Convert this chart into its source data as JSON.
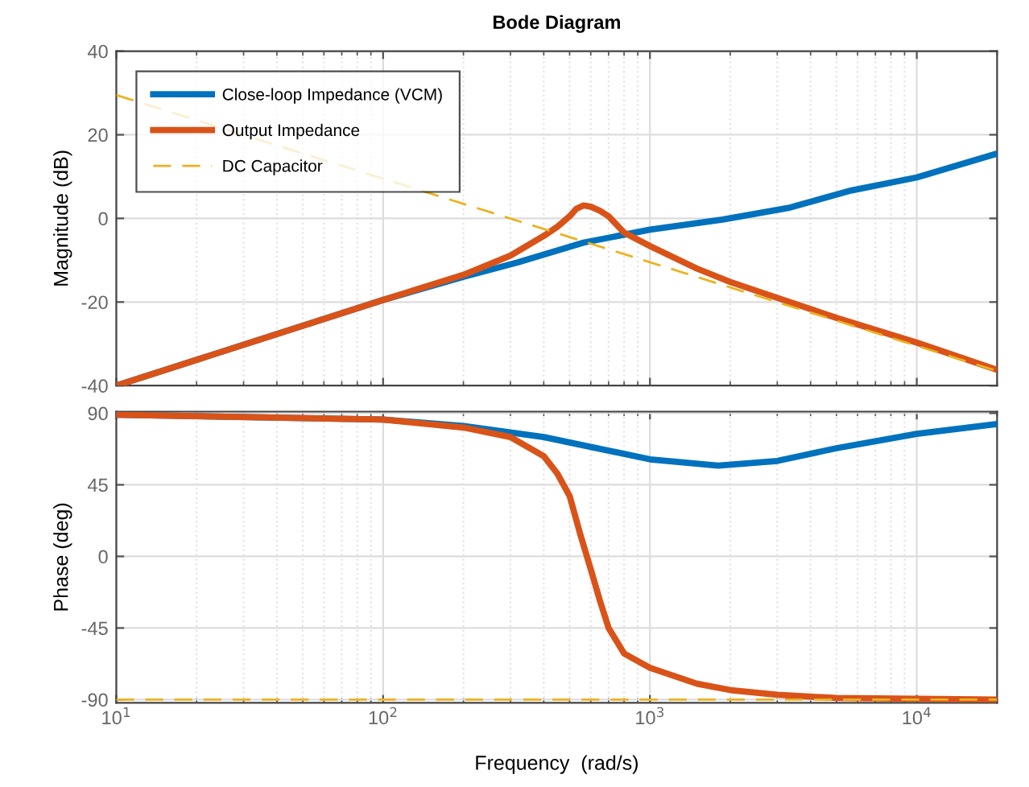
{
  "chart_data": [
    {
      "type": "line",
      "title": "Bode Diagram",
      "ylabel": "Magnitude (dB)",
      "log": "x",
      "grid": true,
      "legend": "top left",
      "tick_labels": "y",
      "xlim": [
        10,
        20000
      ],
      "xticks": [
        {
          "value": 10,
          "label": null
        },
        {
          "value": 100,
          "label": null
        },
        {
          "value": 1000,
          "label": null
        },
        {
          "value": 10000,
          "label": null
        }
      ],
      "ylim": [
        -40,
        40
      ],
      "yticks": [
        -40,
        -20,
        0,
        20,
        40
      ],
      "series": [
        {
          "name": "Close-loop Impedance (VCM)",
          "color": "#0072bd",
          "line_style": "solid",
          "x": [
            10,
            100,
            200,
            320,
            564,
            1000,
            1870,
            3300,
            5700,
            10000,
            19500
          ],
          "values": [
            -40,
            -19.5,
            -14,
            -10.5,
            -5.8,
            -2.7,
            -0.3,
            2.5,
            6.7,
            9.8,
            15.3
          ]
        },
        {
          "name": "Output Impedance",
          "color": "#d95319",
          "line_style": "solid",
          "x": [
            10,
            100,
            200,
            300,
            400,
            450,
            500,
            530,
            564,
            600,
            650,
            700,
            750,
            800,
            1000,
            1500,
            2000,
            3000,
            5000,
            10000,
            19500
          ],
          "values": [
            -40,
            -19.5,
            -13.5,
            -8.9,
            -4.2,
            -2,
            0.5,
            2.3,
            3.1,
            2.8,
            1.8,
            0.5,
            -1.5,
            -3.4,
            -6.6,
            -12,
            -15.2,
            -19,
            -23.8,
            -29.7,
            -36
          ]
        },
        {
          "name": "DC Capacitor",
          "color": "#edb120",
          "line_style": "dashed",
          "x": [
            10,
            20000
          ],
          "values": [
            29.5,
            -36.5
          ]
        }
      ]
    },
    {
      "type": "line",
      "xlabel": "Frequency  (rad/s)",
      "ylabel": "Phase (deg)",
      "log": "x",
      "grid": true,
      "xlim": [
        10,
        20000
      ],
      "xticks": [
        {
          "value": 10,
          "label": "10$^{1}$"
        },
        {
          "value": 100,
          "label": "10$^{2}$"
        },
        {
          "value": 1000,
          "label": "10$^{3}$"
        },
        {
          "value": 10000,
          "label": "10$^{4}$"
        }
      ],
      "ylim": [
        -92,
        91
      ],
      "yticks": [
        -90,
        -45,
        0,
        45,
        90
      ],
      "series": [
        {
          "color": "#0072bd",
          "line_style": "solid",
          "x": [
            10,
            100,
            200,
            400,
            1000,
            1800,
            3000,
            5000,
            10000,
            19500
          ],
          "values": [
            89,
            86,
            82,
            75,
            61,
            57,
            60,
            68,
            77,
            83
          ]
        },
        {
          "color": "#d95319",
          "line_style": "solid",
          "x": [
            10,
            100,
            200,
            300,
            400,
            450,
            500,
            550,
            600,
            650,
            700,
            800,
            1000,
            1500,
            2000,
            3000,
            5000,
            19500
          ],
          "values": [
            89,
            86,
            81,
            75,
            63,
            52,
            38,
            13,
            -8,
            -28,
            -45,
            -61,
            -70,
            -80,
            -84,
            -87,
            -89,
            -90
          ]
        },
        {
          "color": "#edb120",
          "line_style": "dashed",
          "x": [
            10,
            20000
          ],
          "values": [
            -90,
            -90
          ]
        }
      ]
    }
  ]
}
